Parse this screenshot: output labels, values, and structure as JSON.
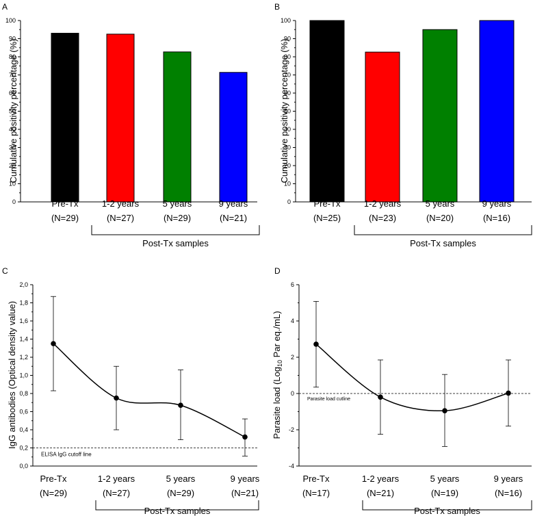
{
  "chart_data": [
    {
      "panel": "A",
      "type": "bar",
      "ylabel": "Cumulative positivity percentage (%)",
      "ylim": [
        0,
        100
      ],
      "yticks": [
        "0",
        "10",
        "20",
        "30",
        "40",
        "50",
        "60",
        "70",
        "80",
        "90",
        "100"
      ],
      "categories": [
        "Pre-Tx",
        "1-2 years",
        "5 years",
        "9 years"
      ],
      "n_labels": [
        "(N=29)",
        "(N=27)",
        "(N=29)",
        "(N=21)"
      ],
      "values": [
        93,
        92.5,
        82.7,
        71.4
      ],
      "colors": [
        "#000000",
        "#ff0000",
        "#008000",
        "#0000ff"
      ],
      "group_label": "Post-Tx samples"
    },
    {
      "panel": "B",
      "type": "bar",
      "ylabel": "Cumulative positivity percentage (%)",
      "ylim": [
        0,
        100
      ],
      "yticks": [
        "0",
        "10",
        "20",
        "30",
        "40",
        "50",
        "60",
        "70",
        "80",
        "90",
        "100"
      ],
      "categories": [
        "Pre-Tx",
        "1-2 years",
        "5 years",
        "9 years"
      ],
      "n_labels": [
        "(N=25)",
        "(N=23)",
        "(N=20)",
        "(N=16)"
      ],
      "values": [
        100,
        82.6,
        95,
        100
      ],
      "colors": [
        "#000000",
        "#ff0000",
        "#008000",
        "#0000ff"
      ],
      "group_label": "Post-Tx samples"
    },
    {
      "panel": "C",
      "type": "line",
      "ylabel": "IgG antibodies (Optical density value)",
      "ylim": [
        0,
        2.0
      ],
      "yticks": [
        "0,0",
        "0,2",
        "0,4",
        "0,6",
        "0,8",
        "1,0",
        "1,2",
        "1,4",
        "1,6",
        "1,8",
        "2,0"
      ],
      "categories": [
        "Pre-Tx",
        "1-2 years",
        "5 years",
        "9 years"
      ],
      "n_labels": [
        "(N=29)",
        "(N=27)",
        "(N=29)",
        "(N=21)"
      ],
      "values": [
        1.35,
        0.75,
        0.67,
        0.32
      ],
      "err_low": [
        0.83,
        0.4,
        0.29,
        0.11
      ],
      "err_high": [
        1.87,
        1.1,
        1.06,
        0.52
      ],
      "cutoff": 0.2,
      "cutoff_label": "ELISA IgG cutoff line",
      "group_label": "Post-Tx samples"
    },
    {
      "panel": "D",
      "type": "line",
      "ylabel_pre": "Parasite load (Log",
      "ylabel_sub": "10",
      "ylabel_post": " Par eq./mL)",
      "ylim": [
        -4,
        6
      ],
      "yticks": [
        "-4",
        "-2",
        "0",
        "2",
        "4",
        "6"
      ],
      "categories": [
        "Pre-Tx",
        "1-2 years",
        "5 years",
        "9 years"
      ],
      "n_labels": [
        "(N=17)",
        "(N=21)",
        "(N=19)",
        "(N=16)"
      ],
      "values": [
        2.72,
        -0.2,
        -0.95,
        0.02
      ],
      "err_low": [
        0.35,
        -2.25,
        -2.92,
        -1.8
      ],
      "err_high": [
        5.08,
        1.85,
        1.05,
        1.85
      ],
      "cutoff": 0,
      "cutoff_label": "Parasite load cutline",
      "group_label": "Post-Tx samples"
    }
  ]
}
